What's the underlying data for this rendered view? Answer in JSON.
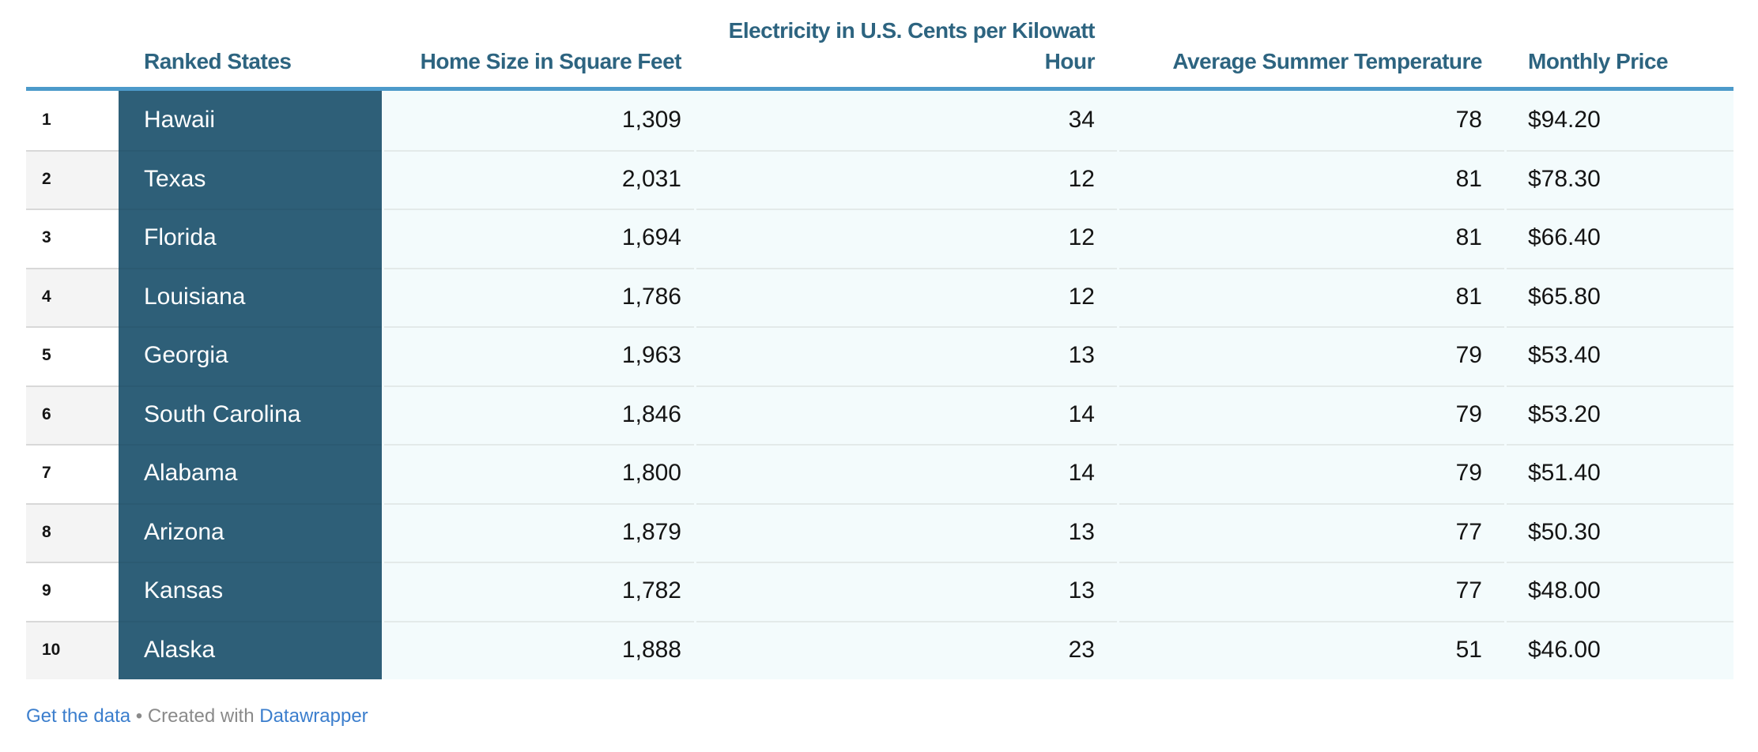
{
  "chart_data": {
    "type": "table",
    "columns": [
      {
        "key": "rank",
        "label": ""
      },
      {
        "key": "state",
        "label": "Ranked States"
      },
      {
        "key": "home_size",
        "label": "Home Size in Square Feet"
      },
      {
        "key": "electricity",
        "label": "Electricity in U.S. Cents per Kilowatt Hour",
        "label_line1": "Electricity in U.S. Cents per Kilowatt",
        "label_line2": "Hour"
      },
      {
        "key": "avg_summer_temp",
        "label": "Average Summer Temperature"
      },
      {
        "key": "monthly_price",
        "label": "Monthly Price"
      }
    ],
    "rows": [
      {
        "rank": "1",
        "state": "Hawaii",
        "home_size": "1,309",
        "electricity": "34",
        "avg_summer_temp": "78",
        "monthly_price": "$94.20"
      },
      {
        "rank": "2",
        "state": "Texas",
        "home_size": "2,031",
        "electricity": "12",
        "avg_summer_temp": "81",
        "monthly_price": "$78.30"
      },
      {
        "rank": "3",
        "state": "Florida",
        "home_size": "1,694",
        "electricity": "12",
        "avg_summer_temp": "81",
        "monthly_price": "$66.40"
      },
      {
        "rank": "4",
        "state": "Louisiana",
        "home_size": "1,786",
        "electricity": "12",
        "avg_summer_temp": "81",
        "monthly_price": "$65.80"
      },
      {
        "rank": "5",
        "state": "Georgia",
        "home_size": "1,963",
        "electricity": "13",
        "avg_summer_temp": "79",
        "monthly_price": "$53.40"
      },
      {
        "rank": "6",
        "state": "South Carolina",
        "home_size": "1,846",
        "electricity": "14",
        "avg_summer_temp": "79",
        "monthly_price": "$53.20"
      },
      {
        "rank": "7",
        "state": "Alabama",
        "home_size": "1,800",
        "electricity": "14",
        "avg_summer_temp": "79",
        "monthly_price": "$51.40"
      },
      {
        "rank": "8",
        "state": "Arizona",
        "home_size": "1,879",
        "electricity": "13",
        "avg_summer_temp": "77",
        "monthly_price": "$50.30"
      },
      {
        "rank": "9",
        "state": "Kansas",
        "home_size": "1,782",
        "electricity": "13",
        "avg_summer_temp": "77",
        "monthly_price": "$48.00"
      },
      {
        "rank": "10",
        "state": "Alaska",
        "home_size": "1,888",
        "electricity": "23",
        "avg_summer_temp": "51",
        "monthly_price": "$46.00"
      }
    ]
  },
  "footer": {
    "get_the_data": "Get the data",
    "separator": "•",
    "created_with": "Created with",
    "brand": "Datawrapper"
  },
  "colors": {
    "header-text": "#2d6480",
    "header-rule": "#4c9aca",
    "state-bg": "#2e5f78",
    "state-border": "#2b5a72",
    "cell-bg": "#f3fbfc",
    "cell-border": "#e3eae9",
    "rank-even": "#f4f4f4",
    "rank-border": "#d8d8d8",
    "text": "#141414",
    "link": "#3b7ecd",
    "muted": "#8a8a8a"
  }
}
